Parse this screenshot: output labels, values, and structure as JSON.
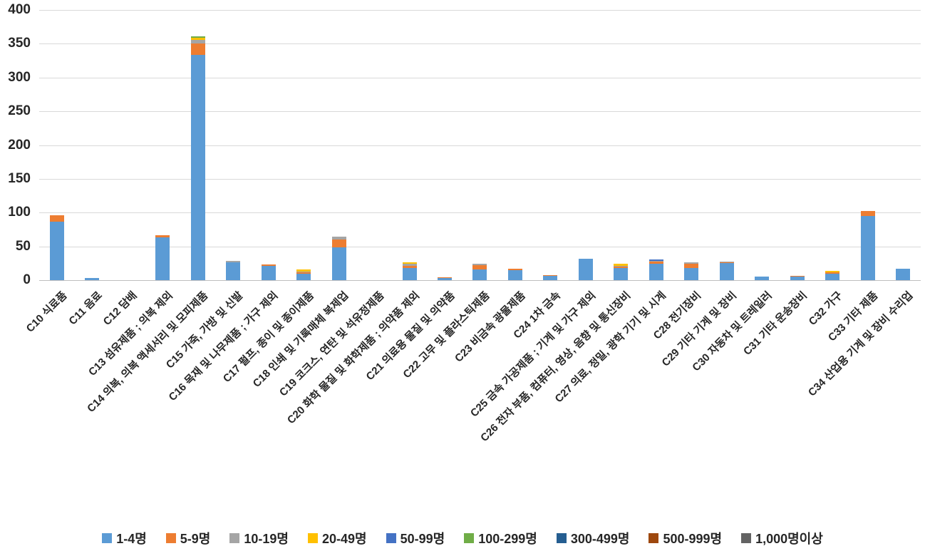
{
  "chart_data": {
    "type": "bar",
    "stacked": true,
    "title": "",
    "xlabel": "",
    "ylabel": "",
    "ylim": [
      0,
      400
    ],
    "ytick_step": 50,
    "ytick_labels": [
      "0",
      "50",
      "100",
      "150",
      "200",
      "250",
      "300",
      "350",
      "400"
    ],
    "grid": true,
    "legend_position": "bottom",
    "categories": [
      "C10 식료품",
      "C11 음료",
      "C12 담배",
      "C13 섬유제품 ; 의복 제외",
      "C14 의복, 의복 액세서리 및 모피제품",
      "C15 가죽, 가방 및 신발",
      "C16 목재 및 나무제품 ; 가구 제외",
      "C17 펄프, 종이 및 종이제품",
      "C18 인쇄 및 기록매체 복제업",
      "C19 코크스, 연탄 및 석유정제품",
      "C20 화학 물질 및 화학제품 ; 의약품 제외",
      "C21 의료용 물질 및 의약품",
      "C22 고무 및 플라스틱제품",
      "C23 비금속 광물제품",
      "C24 1차 금속",
      "C25 금속 가공제품 ; 기계 및 가구 제외",
      "C26 전자 부품, 컴퓨터, 영상, 음향 및 통신장비",
      "C27 의료, 정밀, 광학 기기 및 시계",
      "C28 전기장비",
      "C29 기타 기계 및 장비",
      "C30 자동차 및 트레일러",
      "C31 기타 운송장비",
      "C32 가구",
      "C33 기타 제품",
      "C34 산업용 기계 및 장비 수리업"
    ],
    "series": [
      {
        "name": "1-4명",
        "color": "#5B9BD5",
        "values": [
          87,
          3,
          0,
          63,
          334,
          26,
          21,
          10,
          49,
          0,
          18,
          3,
          16,
          15,
          6,
          32,
          18,
          24,
          18,
          25,
          5,
          5,
          10,
          95,
          17
        ]
      },
      {
        "name": "5-9명",
        "color": "#ED7D31",
        "values": [
          9,
          0,
          0,
          3,
          16,
          0,
          2,
          2,
          11,
          0,
          3,
          1,
          6,
          2,
          1,
          0,
          2,
          3,
          6,
          1,
          0,
          1,
          2,
          7,
          0
        ]
      },
      {
        "name": "10-19명",
        "color": "#A5A5A5",
        "values": [
          0,
          0,
          0,
          0,
          6,
          2,
          0,
          1,
          4,
          0,
          3,
          0,
          2,
          0,
          0,
          0,
          1,
          2,
          2,
          1,
          0,
          0,
          0,
          0,
          0
        ]
      },
      {
        "name": "20-49명",
        "color": "#FFC000",
        "values": [
          0,
          0,
          0,
          0,
          3,
          0,
          0,
          3,
          0,
          0,
          2,
          0,
          0,
          0,
          0,
          0,
          3,
          0,
          0,
          0,
          0,
          0,
          2,
          0,
          0
        ]
      },
      {
        "name": "50-99명",
        "color": "#4472C4",
        "values": [
          0,
          0,
          0,
          0,
          0,
          0,
          0,
          0,
          0,
          0,
          0,
          0,
          0,
          0,
          0,
          0,
          0,
          2,
          0,
          0,
          0,
          0,
          0,
          0,
          0
        ]
      },
      {
        "name": "100-299명",
        "color": "#70AD47",
        "values": [
          0,
          0,
          0,
          0,
          2,
          0,
          0,
          0,
          0,
          0,
          0,
          0,
          0,
          0,
          0,
          0,
          0,
          0,
          0,
          0,
          0,
          0,
          0,
          0,
          0
        ]
      },
      {
        "name": "300-499명",
        "color": "#255E91",
        "values": [
          0,
          0,
          0,
          0,
          0,
          0,
          0,
          0,
          0,
          0,
          0,
          0,
          0,
          0,
          0,
          0,
          0,
          0,
          0,
          0,
          0,
          0,
          0,
          0,
          0
        ]
      },
      {
        "name": "500-999명",
        "color": "#9E480E",
        "values": [
          0,
          0,
          0,
          0,
          0,
          0,
          0,
          0,
          0,
          0,
          0,
          0,
          0,
          0,
          0,
          0,
          0,
          0,
          0,
          0,
          0,
          0,
          0,
          0,
          0
        ]
      },
      {
        "name": "1,000명이상",
        "color": "#636363",
        "values": [
          0,
          0,
          0,
          0,
          0,
          0,
          0,
          0,
          0,
          0,
          0,
          0,
          0,
          0,
          0,
          0,
          0,
          0,
          0,
          0,
          0,
          0,
          0,
          0,
          0
        ]
      }
    ]
  }
}
